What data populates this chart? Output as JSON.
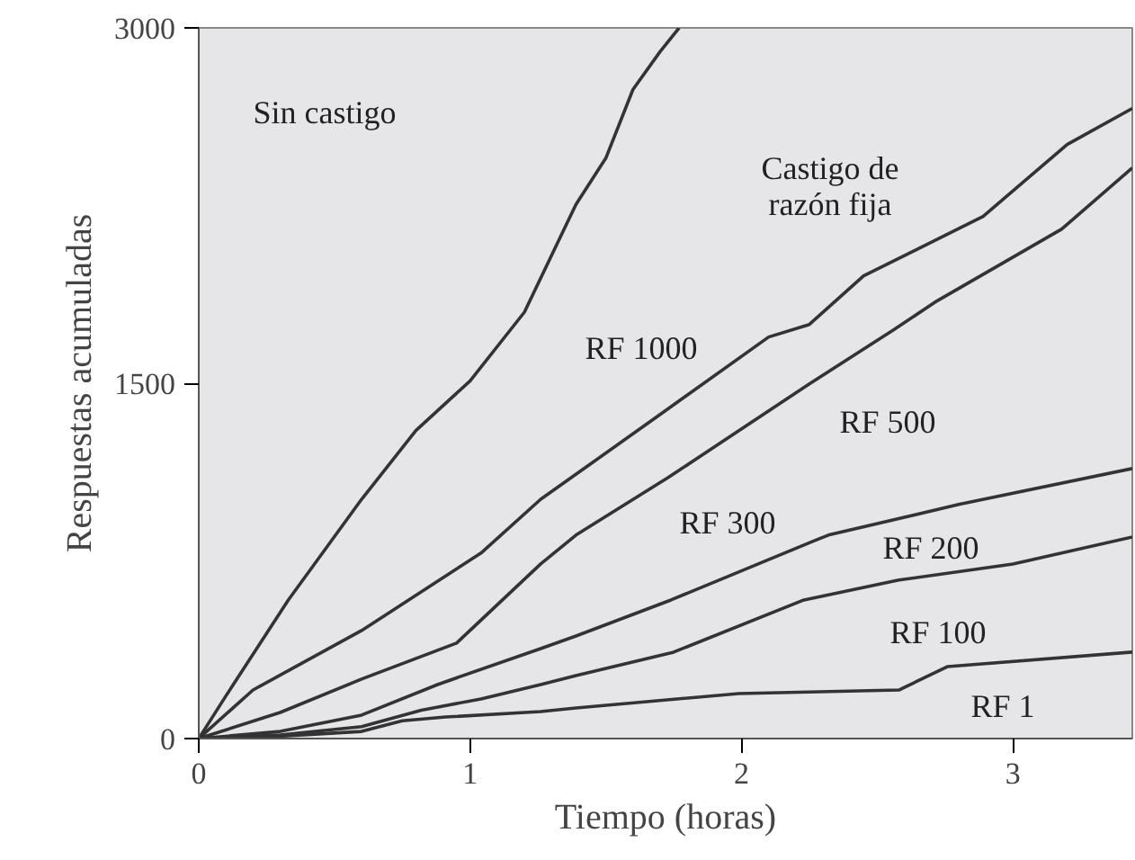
{
  "chart_data": {
    "type": "line",
    "xlabel": "Tiempo (horas)",
    "ylabel": "Respuestas acumuladas",
    "xlim": [
      0,
      3.44
    ],
    "ylim": [
      0,
      3000
    ],
    "xticks": [
      0,
      1,
      2,
      3
    ],
    "yticks": [
      0,
      1500,
      3000
    ],
    "grid": false,
    "marker": "none",
    "line_style": "solid",
    "series": [
      {
        "color": "#333333",
        "x": [
          0,
          0.1,
          0.33,
          0.6,
          0.8,
          1.0,
          1.2,
          1.39,
          1.5,
          1.6,
          1.7,
          1.77
        ],
        "values": [
          0,
          180,
          585,
          1010,
          1300,
          1510,
          1800,
          2255,
          2450,
          2740,
          2900,
          3000
        ]
      },
      {
        "color": "#333333",
        "x": [
          0,
          0.2,
          0.6,
          1.04,
          1.26,
          1.42,
          1.7,
          2.1,
          2.25,
          2.45,
          2.89,
          3.2,
          3.44
        ],
        "values": [
          0,
          205,
          456,
          783,
          1010,
          1140,
          1368,
          1695,
          1748,
          1953,
          2204,
          2508,
          2660
        ]
      },
      {
        "color": "#333333",
        "x": [
          0,
          0.3,
          0.6,
          0.95,
          1.26,
          1.39,
          1.73,
          2.25,
          2.56,
          2.72,
          3.18,
          3.44
        ],
        "values": [
          0,
          110,
          251,
          403,
          737,
          859,
          1102,
          1497,
          1725,
          1847,
          2151,
          2409
        ]
      },
      {
        "color": "#333333",
        "x": [
          0,
          0.3,
          0.6,
          0.88,
          1.26,
          1.39,
          1.74,
          2.27,
          2.32,
          2.8,
          3.44
        ],
        "values": [
          0,
          30,
          99,
          228,
          380,
          433,
          585,
          836,
          859,
          988,
          1140
        ]
      },
      {
        "color": "#333333",
        "x": [
          0,
          0.3,
          0.6,
          0.82,
          1.04,
          1.26,
          1.39,
          1.75,
          2.23,
          2.58,
          3.0,
          3.44
        ],
        "values": [
          0,
          15,
          50,
          120,
          167,
          228,
          266,
          365,
          585,
          669,
          737,
          851
        ]
      },
      {
        "color": "#333333",
        "x": [
          0,
          0.3,
          0.6,
          0.75,
          0.91,
          1.26,
          1.39,
          1.99,
          2.58,
          2.76,
          3.44
        ],
        "values": [
          0,
          10,
          30,
          75,
          91,
          114,
          129,
          190,
          205,
          304,
          365
        ]
      }
    ],
    "annotations": [
      "Sin castigo",
      "Castigo de\nrazón fija",
      "RF 1000",
      "RF 500",
      "RF 300",
      "RF 200",
      "RF 100",
      "RF 1"
    ]
  }
}
